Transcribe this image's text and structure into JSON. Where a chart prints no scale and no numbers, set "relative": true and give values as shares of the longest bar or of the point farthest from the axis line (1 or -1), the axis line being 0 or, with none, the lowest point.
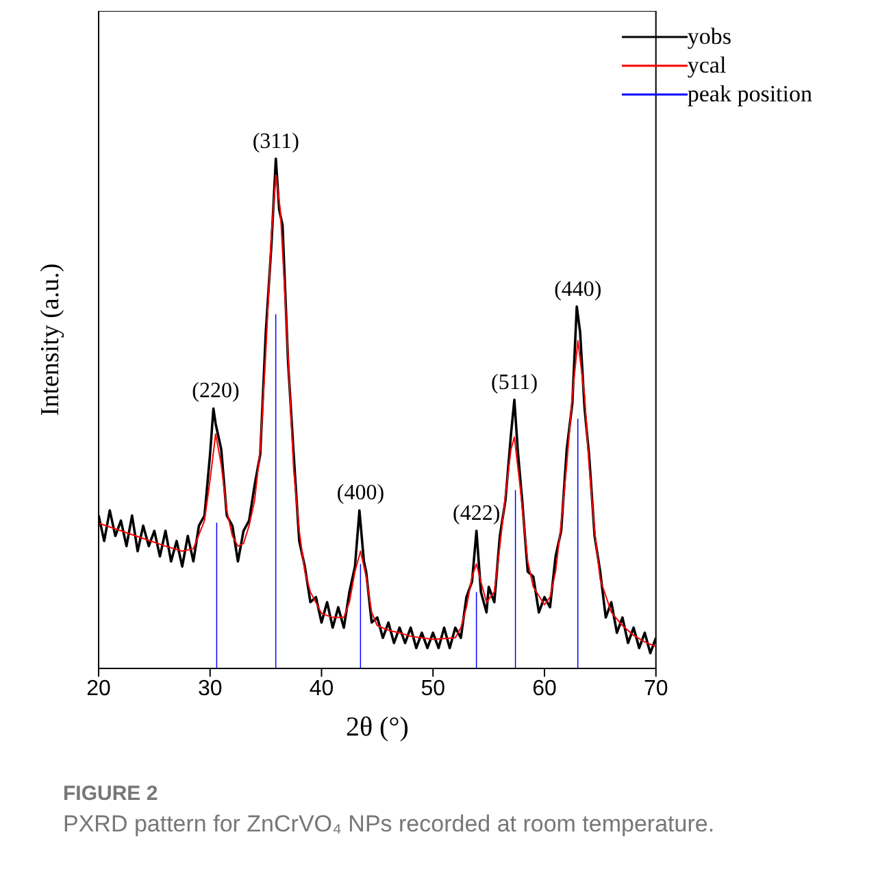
{
  "chart_data": {
    "type": "line",
    "relative": true,
    "xlabel": "2θ (°)",
    "ylabel": "Intensity (a.u.)",
    "xlim": [
      20,
      70
    ],
    "xticks": [
      20,
      30,
      40,
      50,
      60,
      70
    ],
    "legend": "top right",
    "marker": "none",
    "series": [
      {
        "name": "yobs",
        "color": "#000000",
        "x": [
          20,
          20.5,
          21,
          21.5,
          22,
          22.5,
          23,
          23.5,
          24,
          24.5,
          25,
          25.5,
          26,
          26.5,
          27,
          27.5,
          28,
          28.5,
          29,
          29.5,
          30,
          30.3,
          30.5,
          31,
          31.5,
          32,
          32.5,
          33,
          33.5,
          34,
          34.5,
          35,
          35.5,
          35.9,
          36.2,
          36.5,
          37,
          37.5,
          38,
          38.5,
          39,
          39.5,
          40,
          40.5,
          41,
          41.5,
          42,
          42.5,
          43,
          43.4,
          43.8,
          44,
          44.5,
          45,
          45.5,
          46,
          46.5,
          47,
          47.5,
          48,
          48.5,
          49,
          49.5,
          50,
          50.5,
          51,
          51.5,
          52,
          52.5,
          53,
          53.5,
          53.9,
          54.3,
          54.8,
          55,
          55.5,
          56,
          56.5,
          57,
          57.3,
          57.6,
          58,
          58.5,
          59,
          59.5,
          60,
          60.5,
          61,
          61.5,
          62,
          62.5,
          62.9,
          63.2,
          63.6,
          64,
          64.5,
          65,
          65.5,
          66,
          66.5,
          67,
          67.5,
          68,
          68.5,
          69,
          69.5,
          70
        ],
        "values": [
          0.3,
          0.25,
          0.31,
          0.26,
          0.29,
          0.24,
          0.3,
          0.23,
          0.28,
          0.24,
          0.27,
          0.22,
          0.27,
          0.21,
          0.25,
          0.2,
          0.26,
          0.21,
          0.28,
          0.3,
          0.42,
          0.51,
          0.48,
          0.43,
          0.3,
          0.28,
          0.21,
          0.27,
          0.29,
          0.36,
          0.42,
          0.66,
          0.83,
          1,
          0.9,
          0.87,
          0.6,
          0.42,
          0.25,
          0.2,
          0.13,
          0.14,
          0.09,
          0.13,
          0.08,
          0.12,
          0.08,
          0.15,
          0.2,
          0.31,
          0.21,
          0.19,
          0.09,
          0.1,
          0.06,
          0.09,
          0.05,
          0.08,
          0.05,
          0.08,
          0.04,
          0.07,
          0.04,
          0.07,
          0.04,
          0.08,
          0.04,
          0.08,
          0.06,
          0.14,
          0.17,
          0.27,
          0.15,
          0.11,
          0.16,
          0.13,
          0.26,
          0.33,
          0.46,
          0.527,
          0.43,
          0.33,
          0.19,
          0.18,
          0.11,
          0.14,
          0.12,
          0.22,
          0.27,
          0.43,
          0.52,
          0.71,
          0.66,
          0.51,
          0.42,
          0.26,
          0.19,
          0.1,
          0.13,
          0.07,
          0.1,
          0.05,
          0.08,
          0.04,
          0.07,
          0.03,
          0.06
        ]
      },
      {
        "name": "ycal",
        "color": "#ff0000",
        "x": [
          20,
          22,
          24,
          26,
          27.5,
          28.5,
          29.5,
          30,
          30.5,
          31,
          31.5,
          32,
          32.5,
          33,
          33.5,
          34,
          34.5,
          35,
          35.5,
          35.9,
          36.3,
          36.8,
          37.5,
          38,
          38.5,
          39,
          40,
          41,
          42,
          42.5,
          43,
          43.5,
          44,
          44.5,
          45,
          46,
          47,
          48,
          50,
          52,
          52.5,
          53,
          53.5,
          53.9,
          54.3,
          54.8,
          55.5,
          56,
          56.5,
          57,
          57.3,
          57.8,
          58.5,
          59,
          60,
          60.5,
          61,
          61.5,
          62,
          62.5,
          63,
          63.6,
          64,
          64.5,
          65,
          66,
          67,
          68,
          69,
          70
        ],
        "values": [
          0.285,
          0.27,
          0.255,
          0.24,
          0.23,
          0.235,
          0.29,
          0.37,
          0.46,
          0.4,
          0.31,
          0.26,
          0.24,
          0.245,
          0.28,
          0.33,
          0.43,
          0.62,
          0.85,
          0.968,
          0.9,
          0.7,
          0.39,
          0.27,
          0.19,
          0.15,
          0.108,
          0.1,
          0.1,
          0.13,
          0.19,
          0.23,
          0.18,
          0.11,
          0.084,
          0.075,
          0.07,
          0.063,
          0.057,
          0.06,
          0.08,
          0.12,
          0.18,
          0.205,
          0.17,
          0.13,
          0.15,
          0.24,
          0.34,
          0.43,
          0.454,
          0.36,
          0.21,
          0.16,
          0.125,
          0.14,
          0.19,
          0.284,
          0.4,
          0.535,
          0.643,
          0.535,
          0.4,
          0.27,
          0.175,
          0.11,
          0.084,
          0.065,
          0.052,
          0.043
        ]
      },
      {
        "name": "peak position",
        "color": "#0000ff",
        "type": "bar",
        "x": [
          30.6,
          35.9,
          43.5,
          53.9,
          57.4,
          63
        ],
        "values": [
          0.286,
          0.695,
          0.205,
          0.15,
          0.35,
          0.49
        ]
      }
    ],
    "annotations": [
      {
        "text": "(220)",
        "x": 30.5,
        "y": 0.51
      },
      {
        "text": "(311)",
        "x": 35.9,
        "y": 1
      },
      {
        "text": "(400)",
        "x": 43.5,
        "y": 0.31
      },
      {
        "text": "(422)",
        "x": 53.9,
        "y": 0.27
      },
      {
        "text": "(511)",
        "x": 57.3,
        "y": 0.527
      },
      {
        "text": "(440)",
        "x": 63,
        "y": 0.71
      },
      "FIGURE 2",
      "PXRD pattern for ZnCrVO₄ NPs recorded at room temperature."
    ]
  }
}
